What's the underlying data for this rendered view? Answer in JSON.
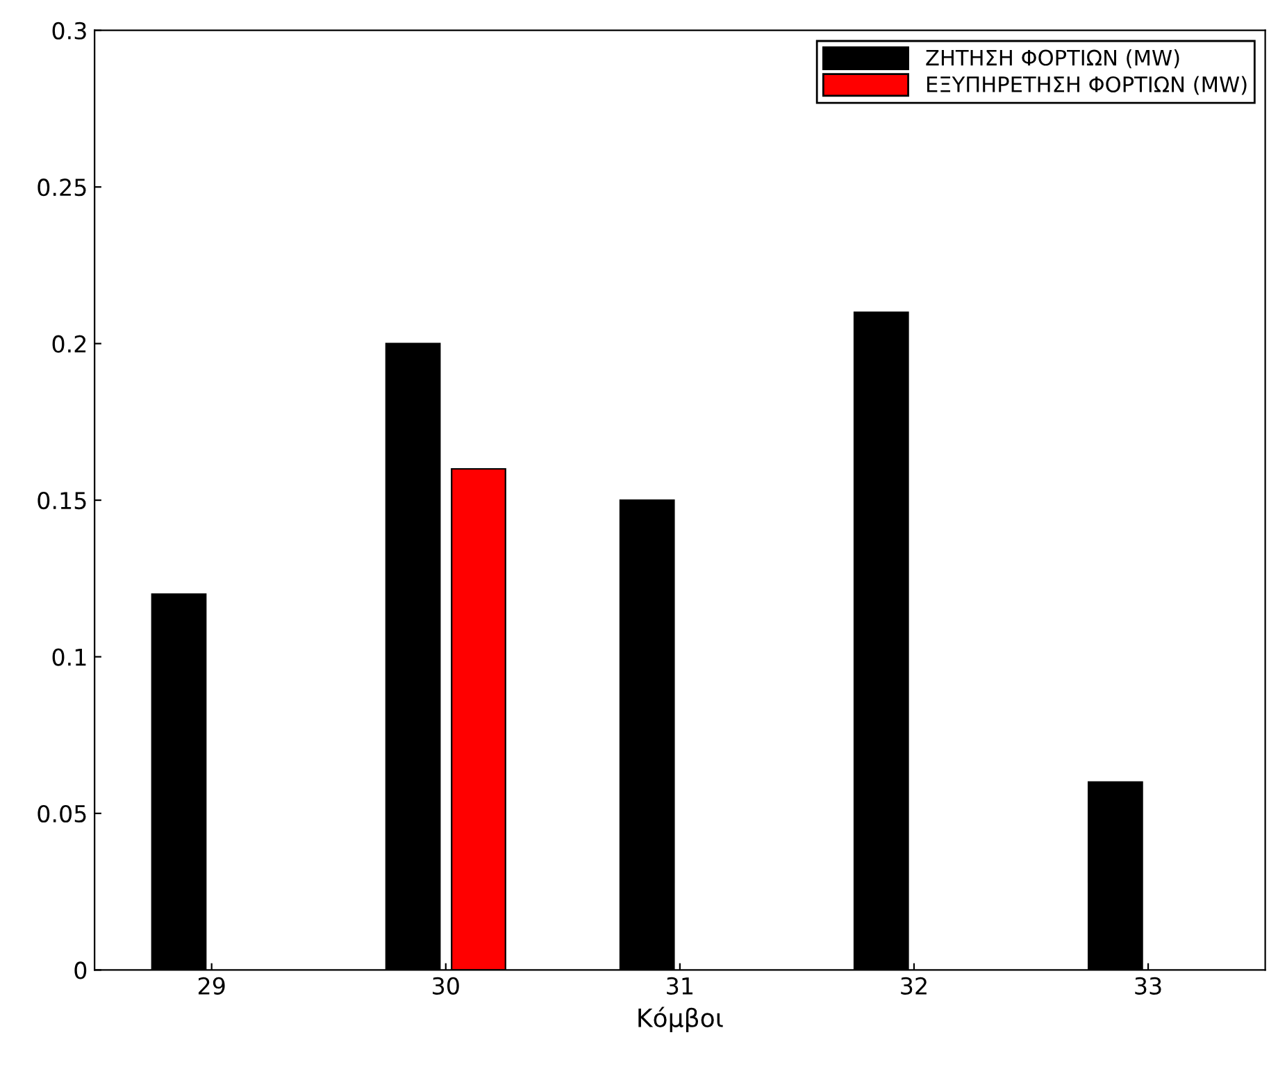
{
  "chart_data": {
    "type": "bar",
    "xlabel": "Κόμβοι",
    "categories": [
      "29",
      "30",
      "31",
      "32",
      "33"
    ],
    "series": [
      {
        "name": "ΖΗΤΗΣΗ ΦΟΡΤΙΩΝ (MW)",
        "color": "#000000",
        "values": [
          0.12,
          0.2,
          0.15,
          0.21,
          0.06
        ]
      },
      {
        "name": "ΕΞΥΠΗΡΕΤΗΣΗ ΦΟΡΤΙΩΝ (MW)",
        "color": "#ff0000",
        "values": [
          null,
          0.16,
          null,
          null,
          null
        ]
      }
    ],
    "ylim": [
      0,
      0.3
    ],
    "yticks": [
      0,
      0.05,
      0.1,
      0.15,
      0.2,
      0.25,
      0.3
    ],
    "grid": false,
    "legend": "top right"
  }
}
